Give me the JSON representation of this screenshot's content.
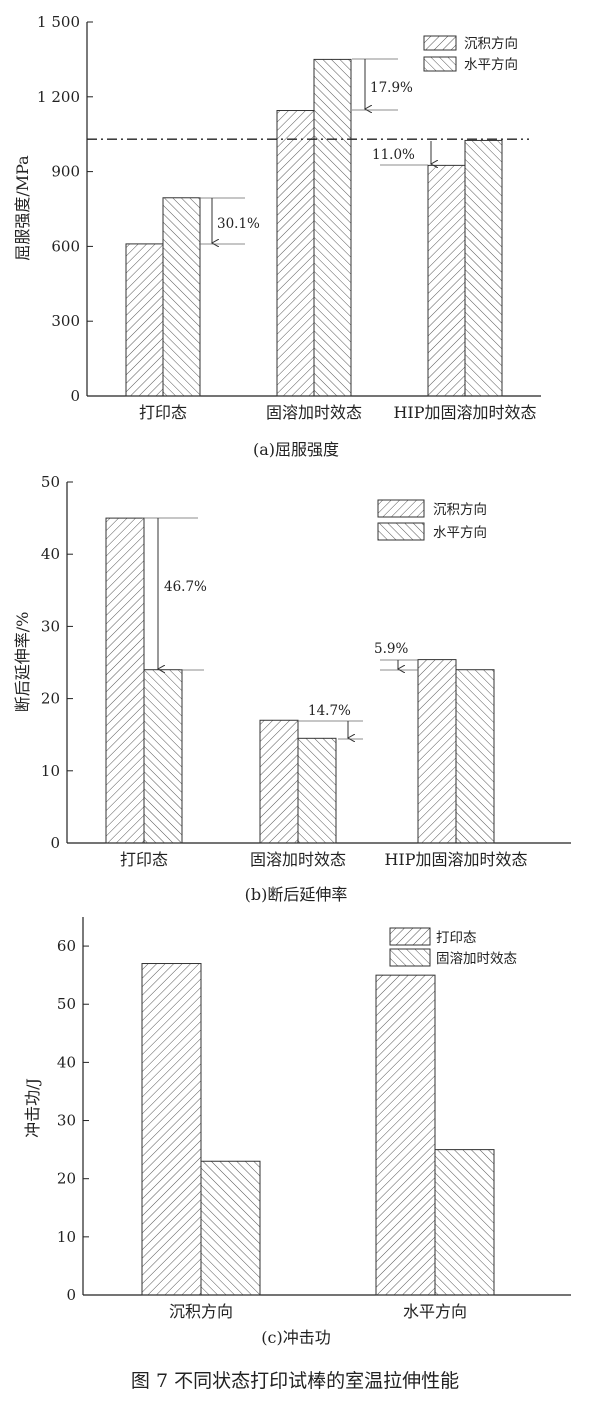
{
  "figure_caption": "图 7    不同状态打印试棒的室温拉伸性能",
  "chart_data": [
    {
      "type": "bar",
      "caption": "(a)屈服强度",
      "ylabel": "屈服强度/MPa",
      "categories": [
        "打印态",
        "固溶加时效态",
        "HIP加固溶加时效态"
      ],
      "series": [
        {
          "name": "沉积方向",
          "values": [
            610,
            1145,
            925
          ]
        },
        {
          "name": "水平方向",
          "values": [
            795,
            1350,
            1025
          ]
        }
      ],
      "ylim": [
        0,
        1500
      ],
      "yticks": [
        0,
        300,
        600,
        900,
        1200,
        1500
      ],
      "ytick_labels": [
        "0",
        "300",
        "600",
        "900",
        "1 200",
        "1 500"
      ],
      "reference_line": 1030,
      "annotations": [
        "30.1%",
        "17.9%",
        "11.0%"
      ],
      "legend_position": "top-right",
      "grid": false
    },
    {
      "type": "bar",
      "caption": "(b)断后延伸率",
      "ylabel": "断后延伸率/%",
      "categories": [
        "打印态",
        "固溶加时效态",
        "HIP加固溶加时效态"
      ],
      "series": [
        {
          "name": "沉积方向",
          "values": [
            45,
            17,
            25.4
          ]
        },
        {
          "name": "水平方向",
          "values": [
            24,
            14.5,
            24
          ]
        }
      ],
      "ylim": [
        0,
        50
      ],
      "yticks": [
        0,
        10,
        20,
        30,
        40,
        50
      ],
      "ytick_labels": [
        "0",
        "10",
        "20",
        "30",
        "40",
        "50"
      ],
      "annotations": [
        "46.7%",
        "14.7%",
        "5.9%"
      ],
      "legend_position": "top-right",
      "grid": false
    },
    {
      "type": "bar",
      "caption": "(c)冲击功",
      "ylabel": "冲击功/J",
      "categories": [
        "沉积方向",
        "水平方向"
      ],
      "series": [
        {
          "name": "打印态",
          "values": [
            57,
            55
          ]
        },
        {
          "name": "固溶加时效态",
          "values": [
            23,
            25
          ]
        }
      ],
      "ylim": [
        0,
        65
      ],
      "yticks": [
        0,
        10,
        20,
        30,
        40,
        50,
        60
      ],
      "ytick_labels": [
        "0",
        "10",
        "20",
        "30",
        "40",
        "50",
        "60"
      ],
      "legend_position": "top-right",
      "grid": false
    }
  ]
}
